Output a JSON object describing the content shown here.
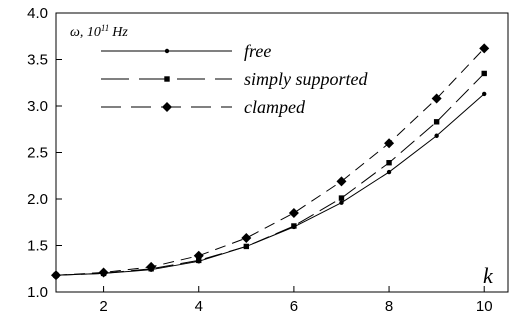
{
  "chart_data": {
    "type": "line",
    "title": "",
    "ylabel": "ω, 10",
    "ylabel_exponent": "11",
    "ylabel_unit": "Hz",
    "xlabel": "k",
    "xlim": [
      1,
      10.5
    ],
    "ylim": [
      1.0,
      4.0
    ],
    "x_ticks": [
      2,
      4,
      6,
      8,
      10
    ],
    "y_ticks": [
      1.0,
      1.5,
      2.0,
      2.5,
      3.0,
      3.5,
      4.0
    ],
    "x_tick_labels": [
      "2",
      "4",
      "6",
      "8",
      "10"
    ],
    "y_tick_labels": [
      "1.0",
      "1.5",
      "2.0",
      "2.5",
      "3.0",
      "3.5",
      "4.0"
    ],
    "grid": false,
    "legend_position": "top-left",
    "x": [
      1,
      2,
      3,
      4,
      5,
      6,
      7,
      8,
      9,
      10
    ],
    "series": [
      {
        "name": "free",
        "line": "solid",
        "marker": "small-circle",
        "values": [
          1.18,
          1.2,
          1.24,
          1.33,
          1.49,
          1.7,
          1.96,
          2.29,
          2.68,
          3.13
        ]
      },
      {
        "name": "simply supported",
        "line": "long-dash",
        "marker": "square",
        "values": [
          1.18,
          1.2,
          1.25,
          1.34,
          1.49,
          1.71,
          2.01,
          2.39,
          2.83,
          3.35
        ]
      },
      {
        "name": "clamped",
        "line": "dash",
        "marker": "diamond",
        "values": [
          1.18,
          1.21,
          1.27,
          1.39,
          1.58,
          1.85,
          2.19,
          2.6,
          3.08,
          3.62
        ]
      }
    ]
  }
}
